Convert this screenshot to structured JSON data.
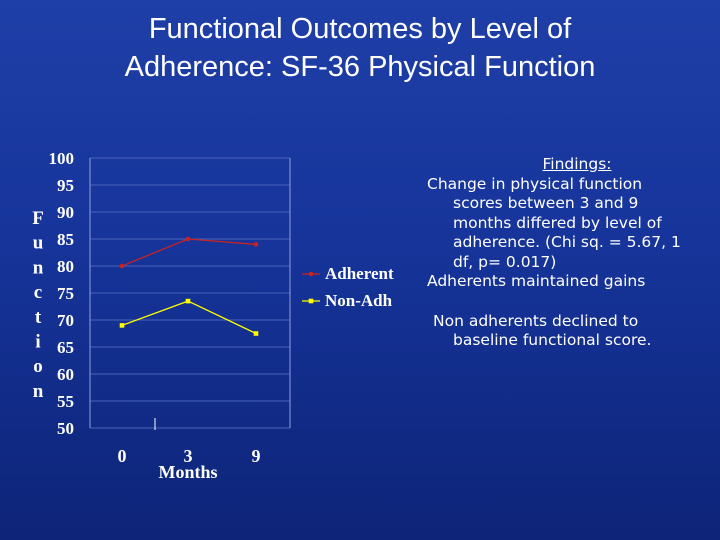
{
  "title_lines": [
    "Functional Outcomes by Level of",
    "Adherence:  SF-36 Physical Function"
  ],
  "chart_data": {
    "type": "line",
    "categories": [
      "0",
      "3",
      "9"
    ],
    "series": [
      {
        "name": "Adherent",
        "values": [
          80,
          85,
          84
        ],
        "color": "#cc2222",
        "marker": "circle"
      },
      {
        "name": "Non-Adh",
        "values": [
          69,
          73.5,
          67.5
        ],
        "color": "#ffff00",
        "marker": "square"
      }
    ],
    "ylim": [
      50,
      100
    ],
    "yticks": [
      "100",
      "95",
      "90",
      "85",
      "80",
      "75",
      "70",
      "65",
      "60",
      "55",
      "50"
    ],
    "xlabel": "Months",
    "ylabel_letters": [
      "F",
      "u",
      "n",
      "c",
      "t",
      "i",
      "o",
      "n"
    ],
    "grid": true,
    "legend_position": "right"
  },
  "findings": {
    "heading": "Findings:",
    "paragraph1": "Change in physical function scores between 3 and 9 months differed by level of adherence. (Chi sq. = 5.67,   1 df,      p= 0.017)",
    "paragraph2": "Adherents maintained gains",
    "paragraph3": "Non adherents declined to baseline functional score."
  }
}
